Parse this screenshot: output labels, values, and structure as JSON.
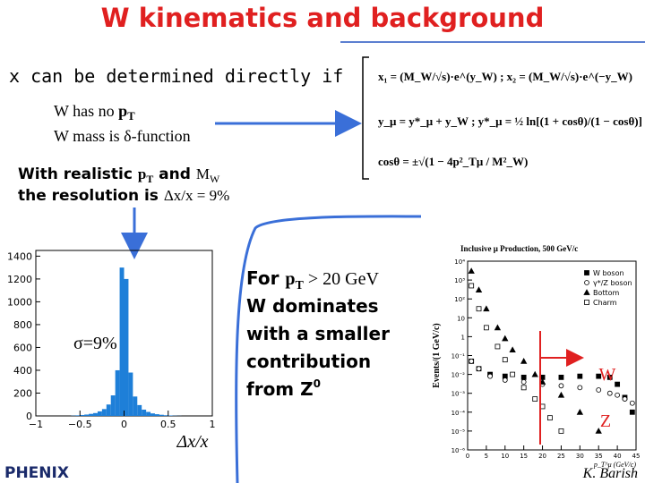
{
  "title": "W kinematics and background",
  "intro": "x can be determined directly if",
  "conditions": [
    [
      "W has no ",
      "p",
      "T"
    ],
    [
      "W mass is δ-function"
    ]
  ],
  "formulas": [
    "x₁ = (M_W/√s)·e^(y_W) ; x₂ = (M_W/√s)·e^(−y_W)",
    "y_μ = y*_μ + y_W ; y*_μ = ½ ln[(1 + cosθ)/(1 − cosθ)]",
    "cosθ = ±√(1 − 4p²_Tμ / M²_W)"
  ],
  "resolution": [
    [
      "With realistic ",
      "p",
      "T",
      " and ",
      "M",
      "W"
    ],
    [
      "the resolution is ",
      "Δx/x = 9%"
    ]
  ],
  "histogram": {
    "type": "histogram",
    "bins": [
      -1,
      -0.95,
      -0.9,
      -0.85,
      -0.8,
      -0.75,
      -0.7,
      -0.65,
      -0.6,
      -0.55,
      -0.5,
      -0.45,
      -0.4,
      -0.35,
      -0.3,
      -0.25,
      -0.2,
      -0.15,
      -0.1,
      -0.05,
      0,
      0.05,
      0.1,
      0.15,
      0.2,
      0.25,
      0.3,
      0.35,
      0.4,
      0.45,
      0.5,
      0.55,
      0.6,
      0.65,
      0.7,
      0.75,
      0.8,
      0.85,
      0.9,
      0.95,
      1
    ],
    "counts": [
      0,
      0,
      0,
      0,
      0,
      0,
      0,
      0,
      2,
      5,
      8,
      12,
      18,
      25,
      40,
      60,
      100,
      180,
      400,
      1300,
      1200,
      380,
      170,
      95,
      55,
      35,
      22,
      15,
      10,
      6,
      4,
      2,
      1,
      0,
      0,
      0,
      0,
      0,
      0,
      0
    ],
    "color": "#1e7fd8",
    "xlim": [
      -1,
      1
    ],
    "ylim": [
      0,
      1450
    ],
    "xticks": [
      {
        "value": -1,
        "label": "−1"
      },
      {
        "value": -0.5,
        "label": "−0.5"
      },
      0,
      0.5,
      1
    ],
    "yticks": [
      0,
      200,
      400,
      600,
      800,
      1000,
      1200,
      1400
    ],
    "annotation": "σ=9%",
    "xlabel": "Δx/x"
  },
  "note": [
    [
      "For ",
      "p",
      "T",
      " > 20 GeV"
    ],
    [
      "W dominates"
    ],
    [
      "with a smaller"
    ],
    [
      "contribution"
    ],
    [
      "from Z",
      "0"
    ]
  ],
  "background_plot": {
    "type": "scatter",
    "title": "Inclusive μ Production, 500 GeV/c",
    "ylabel": "Events/(1 GeV/c)",
    "xlabel": "p_T^μ (GeV/c)",
    "log_y": true,
    "xlim": [
      0,
      45
    ],
    "ylim": [
      1e-06,
      10000
    ],
    "xticks": [
      0,
      5,
      10,
      15,
      20,
      25,
      30,
      35,
      40,
      45
    ],
    "yticks": [
      {
        "value": 10000,
        "label": "10⁴"
      },
      {
        "value": 1000,
        "label": "10³"
      },
      {
        "value": 100,
        "label": "10²"
      },
      10,
      1,
      {
        "value": 0.1,
        "label": "10⁻¹"
      },
      {
        "value": 0.01,
        "label": "10⁻²"
      },
      {
        "value": 0.001,
        "label": "10⁻³"
      },
      {
        "value": 0.0001,
        "label": "10⁻⁴"
      },
      {
        "value": 1e-05,
        "label": "10⁻⁵"
      },
      {
        "value": 1e-06,
        "label": "10⁻⁶"
      }
    ],
    "series": [
      {
        "name": "W boson",
        "color": "#000000",
        "x": [
          1,
          3,
          6,
          10,
          15,
          20,
          25,
          30,
          35,
          38,
          40,
          42,
          44
        ],
        "values": [
          0.05,
          0.02,
          0.01,
          0.008,
          0.007,
          0.007,
          0.007,
          0.008,
          0.008,
          0.007,
          0.003,
          0.0006,
          0.0001
        ]
      },
      {
        "name": "γ*/Z boson",
        "color": "#000000",
        "x": [
          1,
          3,
          6,
          10,
          15,
          20,
          25,
          30,
          35,
          38,
          40,
          42,
          44
        ],
        "values": [
          0.05,
          0.02,
          0.008,
          0.005,
          0.004,
          0.003,
          0.0025,
          0.002,
          0.0015,
          0.001,
          0.0008,
          0.0005,
          0.0003
        ]
      },
      {
        "name": "Bottom",
        "color": "#000000",
        "x": [
          1,
          3,
          5,
          8,
          10,
          12,
          15,
          18,
          20,
          25,
          30,
          35
        ],
        "values": [
          3000,
          300,
          30,
          3,
          0.8,
          0.2,
          0.05,
          0.01,
          0.004,
          0.0008,
          0.0001,
          1e-05
        ]
      },
      {
        "name": "Charm",
        "color": "#000000",
        "x": [
          1,
          3,
          5,
          8,
          10,
          12,
          15,
          18,
          20,
          22,
          25
        ],
        "values": [
          500,
          30,
          3,
          0.3,
          0.06,
          0.01,
          0.002,
          0.0005,
          0.0002,
          5e-05,
          1e-05
        ]
      }
    ],
    "labels": [
      "W",
      "Z"
    ]
  },
  "footer": {
    "logo": "PHENIX",
    "author": "K. Barish"
  }
}
